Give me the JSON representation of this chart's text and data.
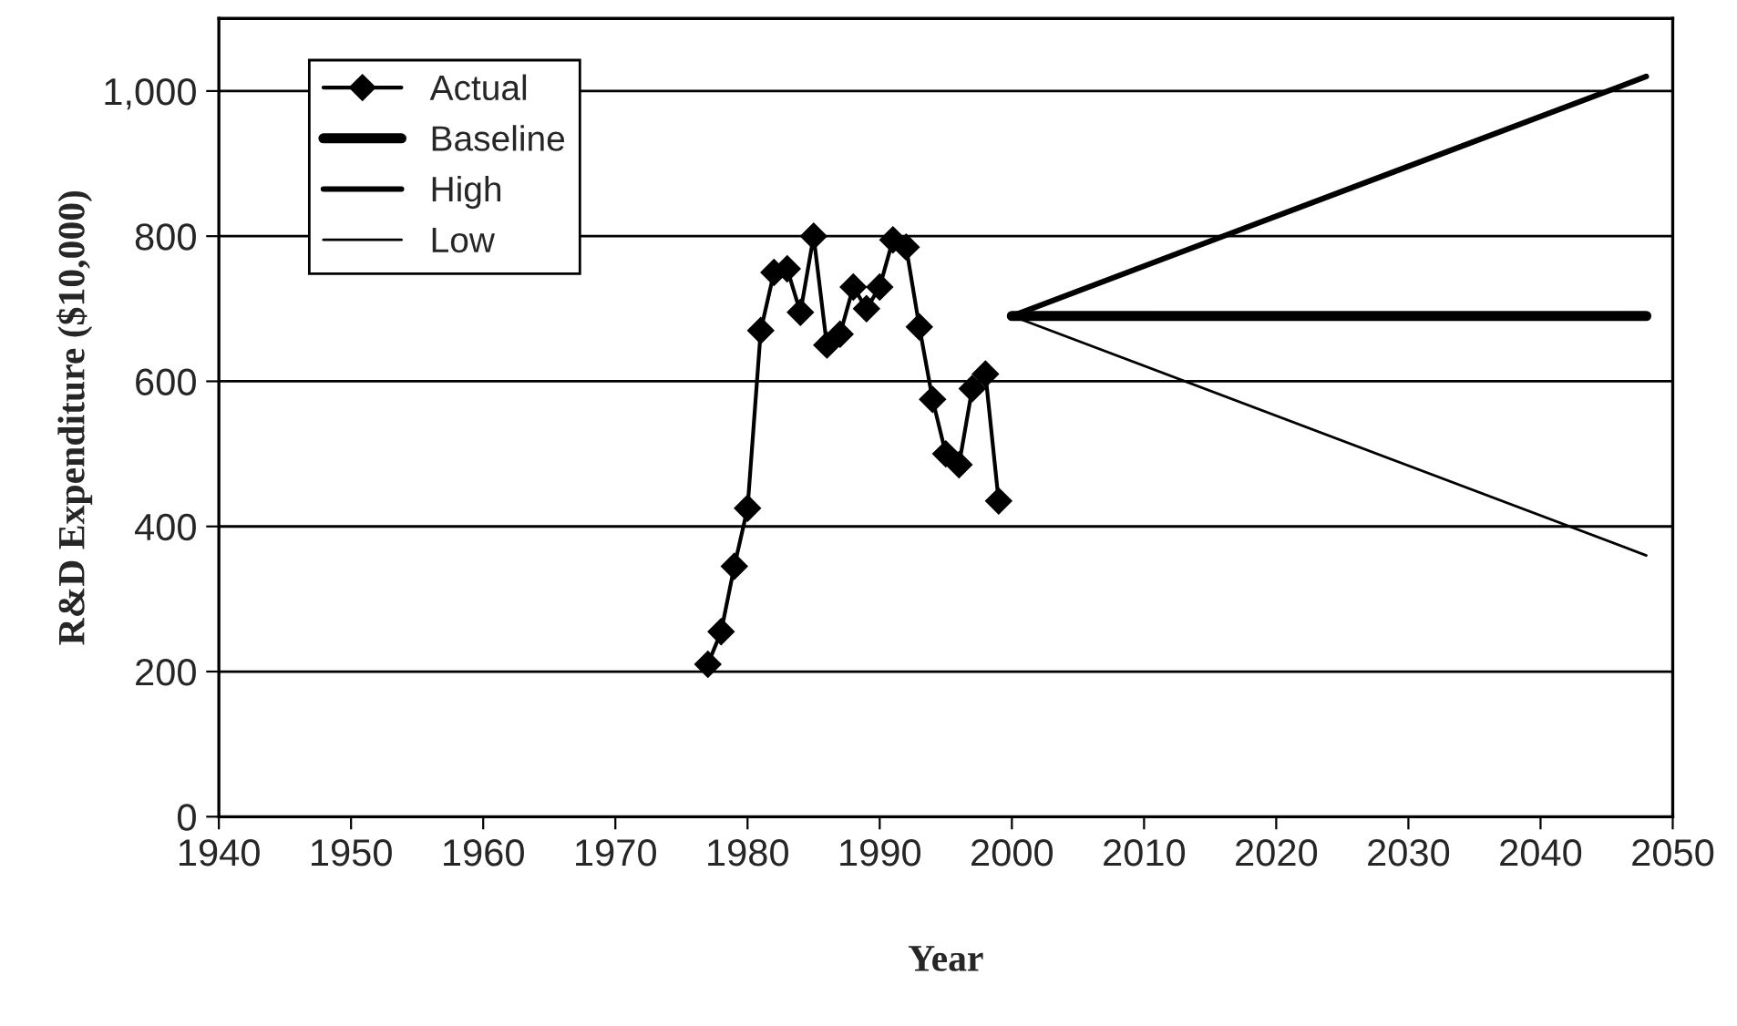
{
  "chart_data": {
    "type": "line",
    "xlabel": "Year",
    "ylabel": "R&D Expenditure ($10,000)",
    "xlim": [
      1940,
      2050
    ],
    "xticks": [
      1940,
      1950,
      1960,
      1970,
      1980,
      1990,
      2000,
      2010,
      2020,
      2030,
      2040,
      2050
    ],
    "ylim": [
      0,
      1100
    ],
    "yticks": [
      0,
      200,
      400,
      600,
      800,
      {
        "value": 1000,
        "label": "1,000"
      }
    ],
    "grid": "y",
    "legend": "top left",
    "series": [
      {
        "name": "Actual",
        "color": "#000000",
        "marker": "diamond",
        "x": [
          1977,
          1978,
          1979,
          1980,
          1981,
          1982,
          1983,
          1984,
          1985,
          1986,
          1987,
          1988,
          1989,
          1990,
          1991,
          1992,
          1993,
          1994,
          1995,
          1996,
          1997,
          1998,
          1999
        ],
        "values": [
          210,
          255,
          345,
          425,
          670,
          750,
          755,
          695,
          800,
          650,
          665,
          730,
          700,
          730,
          795,
          785,
          675,
          575,
          500,
          485,
          590,
          610,
          435
        ]
      },
      {
        "name": "Baseline",
        "color": "#000000",
        "marker": "none",
        "x": [
          2000,
          2048
        ],
        "values": [
          690,
          690
        ]
      },
      {
        "name": "High",
        "color": "#000000",
        "marker": "none",
        "x": [
          2000,
          2048
        ],
        "values": [
          690,
          1020
        ]
      },
      {
        "name": "Low",
        "color": "#000000",
        "marker": "none",
        "x": [
          2000,
          2048
        ],
        "values": [
          690,
          360
        ]
      }
    ]
  }
}
